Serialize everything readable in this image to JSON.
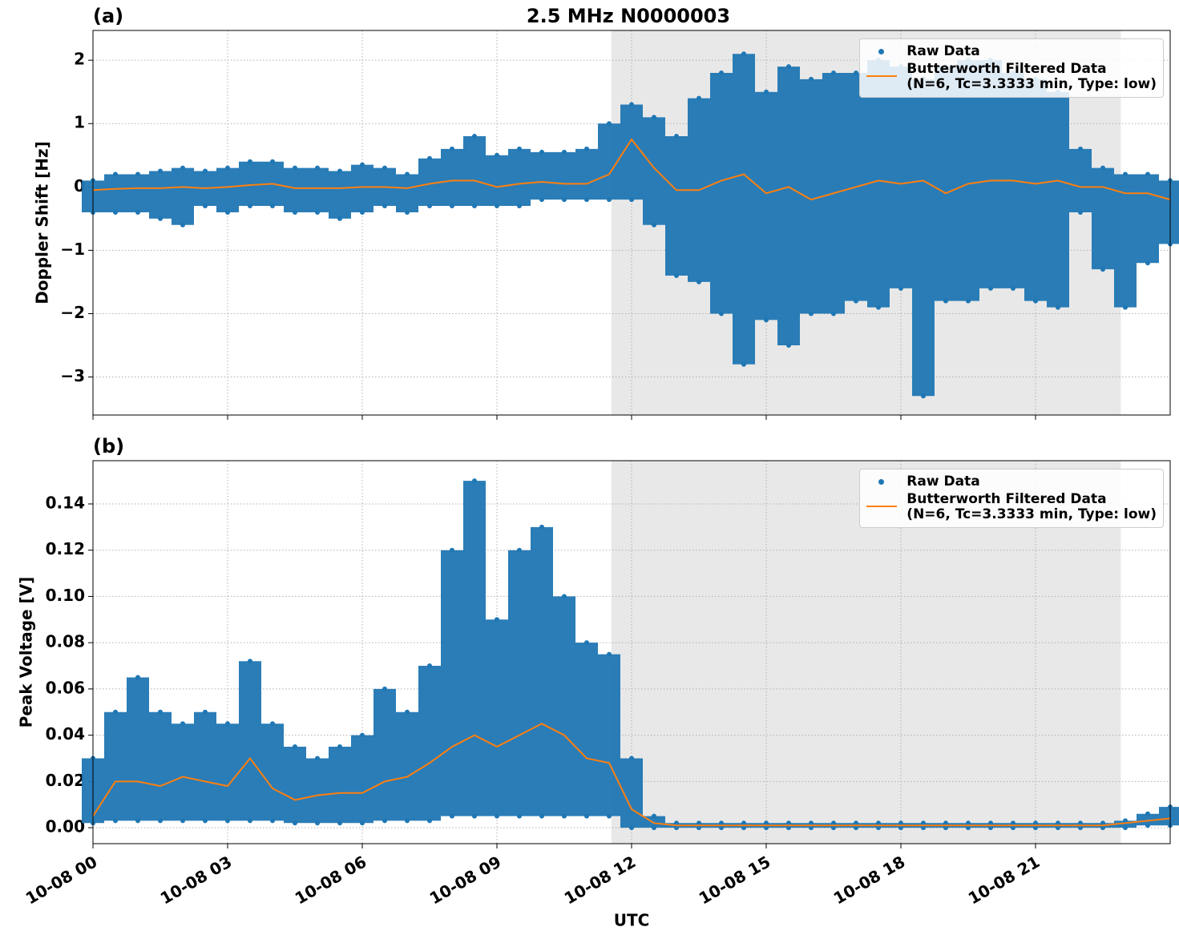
{
  "chart_data": [
    {
      "type": "scatter-line",
      "title": "2.5 MHz N0000003",
      "panel_label": "(a)",
      "ylabel": "Doppler Shift [Hz]",
      "xlim": [
        0,
        24
      ],
      "ylim": [
        -3.6,
        2.47
      ],
      "yticks": [
        {
          "value": -3,
          "label": "−3"
        },
        {
          "value": -2,
          "label": "−2"
        },
        {
          "value": -1,
          "label": "−1"
        },
        0,
        1,
        2
      ],
      "grid": true,
      "legend": "upper right",
      "shaded_span": [
        11.55,
        22.9
      ],
      "x": [
        0,
        0.5,
        1,
        1.5,
        2,
        2.5,
        3,
        3.5,
        4,
        4.5,
        5,
        5.5,
        6,
        6.5,
        7,
        7.5,
        8,
        8.5,
        9,
        9.5,
        10,
        10.5,
        11,
        11.5,
        12,
        12.5,
        13,
        13.5,
        14,
        14.5,
        15,
        15.5,
        16,
        16.5,
        17,
        17.5,
        18,
        18.5,
        19,
        19.5,
        20,
        20.5,
        21,
        21.5,
        22,
        22.5,
        23,
        23.5,
        24
      ],
      "series": [
        {
          "name": "Raw Data",
          "color": "#1f77b4",
          "high": [
            0.1,
            0.2,
            0.2,
            0.25,
            0.3,
            0.25,
            0.3,
            0.4,
            0.4,
            0.3,
            0.3,
            0.25,
            0.35,
            0.3,
            0.2,
            0.45,
            0.6,
            0.8,
            0.5,
            0.6,
            0.55,
            0.55,
            0.6,
            1.0,
            1.3,
            1.1,
            0.8,
            1.4,
            1.8,
            2.1,
            1.5,
            1.9,
            1.7,
            1.8,
            1.8,
            2.0,
            1.9,
            1.7,
            1.9,
            2.0,
            2.0,
            1.8,
            1.7,
            1.5,
            0.6,
            0.3,
            0.2,
            0.2,
            0.1
          ],
          "low": [
            -0.4,
            -0.4,
            -0.4,
            -0.5,
            -0.6,
            -0.3,
            -0.4,
            -0.3,
            -0.3,
            -0.4,
            -0.4,
            -0.5,
            -0.4,
            -0.3,
            -0.4,
            -0.3,
            -0.3,
            -0.3,
            -0.3,
            -0.3,
            -0.2,
            -0.2,
            -0.2,
            -0.2,
            -0.2,
            -0.6,
            -1.4,
            -1.5,
            -2.0,
            -2.8,
            -2.1,
            -2.5,
            -2.0,
            -2.0,
            -1.8,
            -1.9,
            -1.6,
            -3.3,
            -1.8,
            -1.8,
            -1.6,
            -1.6,
            -1.8,
            -1.9,
            -0.4,
            -1.3,
            -1.9,
            -1.2,
            -0.9
          ]
        },
        {
          "name": "Butterworth Filtered Data\n(N=6, Tc=3.3333 min, Type: low)",
          "color": "#ff7f0e",
          "values": [
            -0.05,
            -0.03,
            -0.02,
            -0.02,
            0.0,
            -0.02,
            0.0,
            0.03,
            0.05,
            -0.02,
            -0.02,
            -0.02,
            0.0,
            0.0,
            -0.02,
            0.05,
            0.1,
            0.1,
            0.0,
            0.05,
            0.08,
            0.05,
            0.05,
            0.2,
            0.75,
            0.3,
            -0.05,
            -0.05,
            0.1,
            0.2,
            -0.1,
            0.0,
            -0.2,
            -0.1,
            0.0,
            0.1,
            0.05,
            0.1,
            -0.1,
            0.05,
            0.1,
            0.1,
            0.05,
            0.1,
            0.0,
            0.0,
            -0.1,
            -0.1,
            -0.2
          ]
        }
      ]
    },
    {
      "type": "scatter-line",
      "panel_label": "(b)",
      "ylabel": "Peak Voltage [V]",
      "xlabel": "UTC",
      "xlim": [
        0,
        24
      ],
      "ylim": [
        -0.0069,
        0.1587
      ],
      "xticks": [
        {
          "value": 0,
          "label": "10-08 00"
        },
        {
          "value": 3,
          "label": "10-08 03"
        },
        {
          "value": 6,
          "label": "10-08 06"
        },
        {
          "value": 9,
          "label": "10-08 09"
        },
        {
          "value": 12,
          "label": "10-08 12"
        },
        {
          "value": 15,
          "label": "10-08 15"
        },
        {
          "value": 18,
          "label": "10-08 18"
        },
        {
          "value": 21,
          "label": "10-08 21"
        }
      ],
      "yticks": [
        {
          "value": 0,
          "label": "0.00"
        },
        {
          "value": 0.02,
          "label": "0.02"
        },
        {
          "value": 0.04,
          "label": "0.04"
        },
        {
          "value": 0.06,
          "label": "0.06"
        },
        {
          "value": 0.08,
          "label": "0.08"
        },
        {
          "value": 0.1,
          "label": "0.10"
        },
        {
          "value": 0.12,
          "label": "0.12"
        },
        {
          "value": 0.14,
          "label": "0.14"
        }
      ],
      "grid": true,
      "legend": "upper right",
      "shaded_span": [
        11.55,
        22.9
      ],
      "x": [
        0,
        0.5,
        1,
        1.5,
        2,
        2.5,
        3,
        3.5,
        4,
        4.5,
        5,
        5.5,
        6,
        6.5,
        7,
        7.5,
        8,
        8.5,
        9,
        9.5,
        10,
        10.5,
        11,
        11.5,
        12,
        12.5,
        13,
        13.5,
        14,
        14.5,
        15,
        15.5,
        16,
        16.5,
        17,
        17.5,
        18,
        18.5,
        19,
        19.5,
        20,
        20.5,
        21,
        21.5,
        22,
        22.5,
        23,
        23.5,
        24
      ],
      "series": [
        {
          "name": "Raw Data",
          "color": "#1f77b4",
          "high": [
            0.03,
            0.05,
            0.065,
            0.05,
            0.045,
            0.05,
            0.045,
            0.072,
            0.045,
            0.035,
            0.03,
            0.035,
            0.04,
            0.06,
            0.05,
            0.07,
            0.12,
            0.15,
            0.09,
            0.12,
            0.13,
            0.1,
            0.08,
            0.075,
            0.03,
            0.005,
            0.002,
            0.002,
            0.002,
            0.002,
            0.002,
            0.002,
            0.002,
            0.002,
            0.002,
            0.002,
            0.002,
            0.002,
            0.002,
            0.002,
            0.002,
            0.002,
            0.002,
            0.002,
            0.002,
            0.002,
            0.003,
            0.006,
            0.009
          ],
          "low": [
            0.002,
            0.003,
            0.003,
            0.003,
            0.003,
            0.003,
            0.003,
            0.003,
            0.003,
            0.002,
            0.002,
            0.002,
            0.002,
            0.003,
            0.003,
            0.003,
            0.005,
            0.005,
            0.005,
            0.005,
            0.005,
            0.005,
            0.005,
            0.005,
            0.0,
            0.0,
            0.0,
            0.0,
            0.0,
            0.0,
            0.0,
            0.0,
            0.0,
            0.0,
            0.0,
            0.0,
            0.0,
            0.0,
            0.0,
            0.0,
            0.0,
            0.0,
            0.0,
            0.0,
            0.0,
            0.0,
            0.0,
            0.001,
            0.001
          ]
        },
        {
          "name": "Butterworth Filtered Data\n(N=6, Tc=3.3333 min, Type: low)",
          "color": "#ff7f0e",
          "values": [
            0.005,
            0.02,
            0.02,
            0.018,
            0.022,
            0.02,
            0.018,
            0.03,
            0.017,
            0.012,
            0.014,
            0.015,
            0.015,
            0.02,
            0.022,
            0.028,
            0.035,
            0.04,
            0.035,
            0.04,
            0.045,
            0.04,
            0.03,
            0.028,
            0.008,
            0.002,
            0.001,
            0.001,
            0.001,
            0.001,
            0.001,
            0.001,
            0.001,
            0.001,
            0.001,
            0.001,
            0.001,
            0.001,
            0.001,
            0.001,
            0.001,
            0.001,
            0.001,
            0.001,
            0.001,
            0.001,
            0.002,
            0.003,
            0.004
          ]
        }
      ]
    }
  ]
}
